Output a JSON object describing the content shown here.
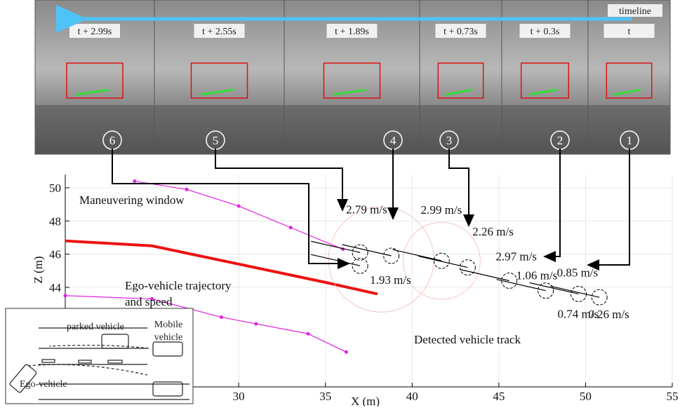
{
  "timeline": "timeline",
  "frames": [
    {
      "time": "t + 2.99s",
      "number": "6"
    },
    {
      "time": "t + 2.55s",
      "number": "5"
    },
    {
      "time": "t + 1.89s",
      "number": "4"
    },
    {
      "time": "t + 0.73s",
      "number": "3"
    },
    {
      "time": "t + 0.3s",
      "number": "2"
    },
    {
      "time": "t",
      "number": "1"
    }
  ],
  "inset": {
    "parked": "parked vehicle",
    "mobile": [
      "Mobile",
      "vehicle"
    ],
    "ego": "Ego-vehicle"
  },
  "chart_data": {
    "type": "line",
    "xlabel": "X (m)",
    "ylabel": "Z (m)",
    "xlim": [
      20,
      55
    ],
    "ylim": [
      38,
      50.8
    ],
    "xticks": [
      30,
      35,
      40,
      45,
      50,
      55
    ],
    "yticks": [
      44,
      46,
      48,
      50
    ],
    "grid": true,
    "annotations": [
      "Maneuvering window",
      "Ego-vehicle trajectory",
      "and speed",
      "Detected vehicle track"
    ],
    "series": [
      {
        "color": "#ee1111",
        "x": [
          20,
          25,
          30,
          35,
          38
        ],
        "values": [
          46.8,
          46.5,
          45.4,
          44.3,
          43.6
        ]
      },
      {
        "color": "#e020e0",
        "x": [
          24,
          27,
          30,
          33,
          36
        ],
        "values": [
          50.4,
          49.9,
          48.9,
          47.6,
          46.3
        ]
      },
      {
        "color": "#e020e0",
        "x": [
          20,
          25,
          29,
          31,
          34,
          36.2
        ],
        "values": [
          43.5,
          43.3,
          42.2,
          41.8,
          41.2,
          40.1
        ]
      }
    ],
    "track": {
      "color": "#000000",
      "x": [
        37,
        37,
        38.8,
        41.7,
        43.2,
        45.6,
        47.7,
        49.6,
        50.8
      ],
      "values": [
        46.1,
        45.3,
        45.9,
        45.6,
        45.2,
        44.4,
        43.8,
        43.6,
        43.4
      ],
      "speed_labels": [
        "2.79 m/s",
        "1.93 m/s",
        "2.99 m/s",
        "2.26 m/s",
        "2.97 m/s",
        "1.06 m/s",
        "0.85 m/s",
        "0.74 m/s",
        "0.26 m/s"
      ]
    }
  }
}
